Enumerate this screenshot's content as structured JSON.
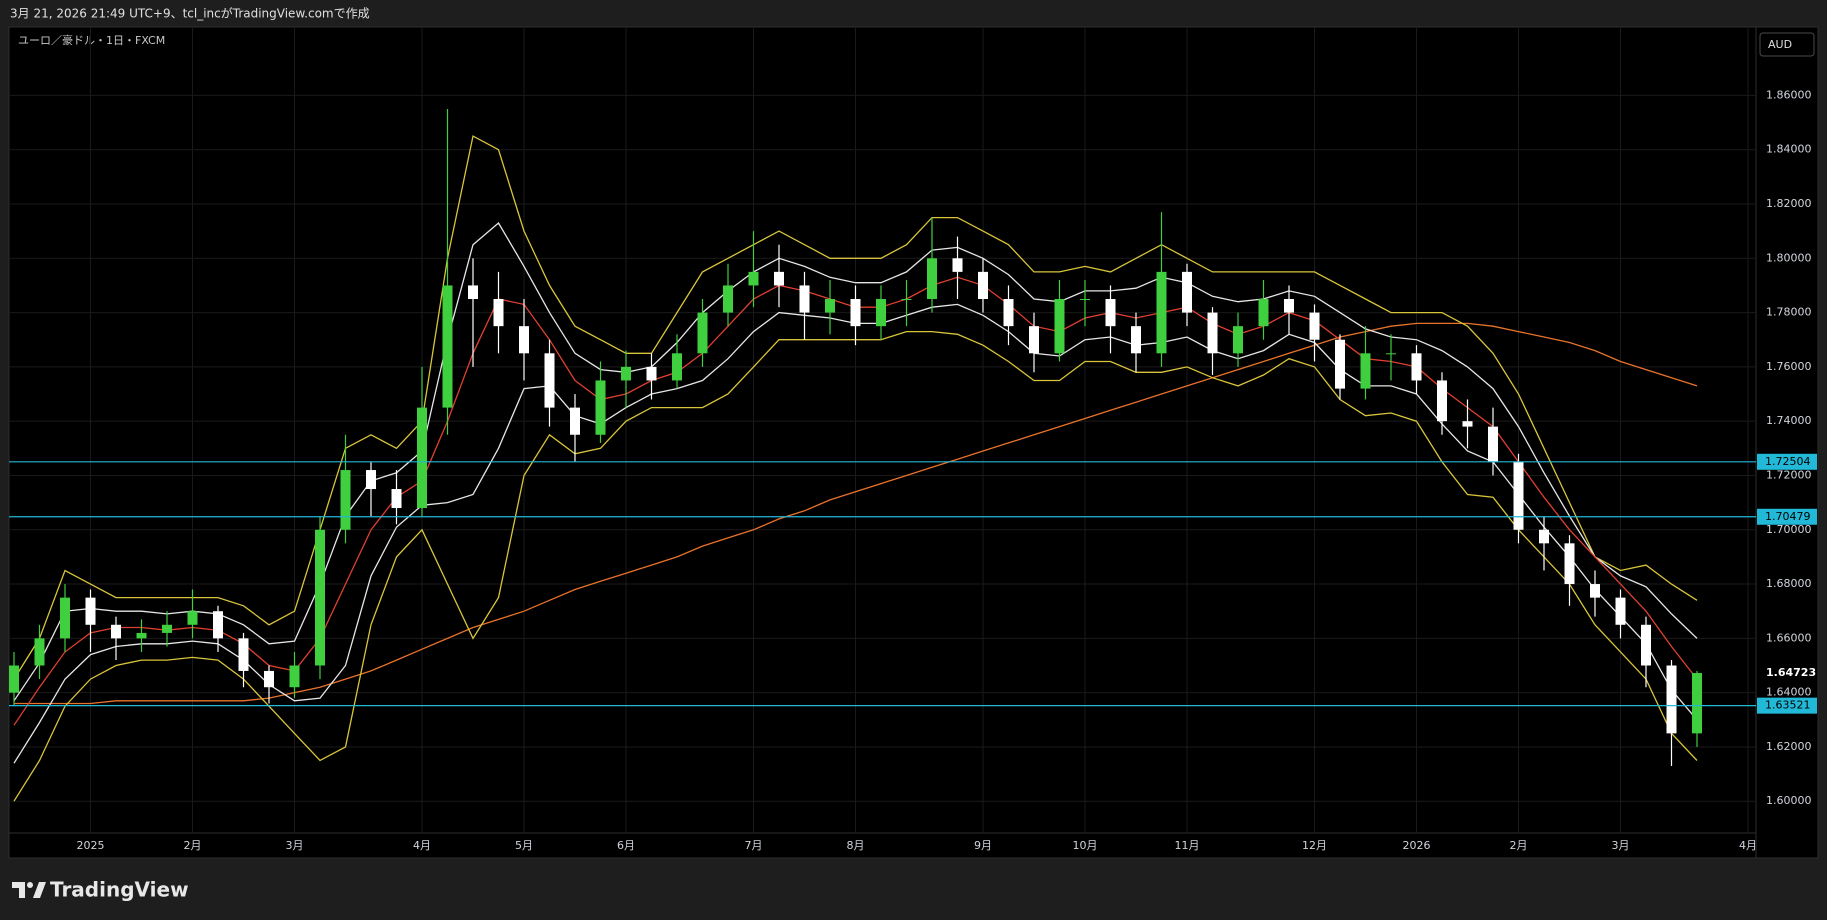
{
  "header": {
    "title": "3月 21, 2026 21:49 UTC+9、tcl_incがTradingView.comで作成"
  },
  "footer": {
    "logo": "TradingView"
  },
  "chart_data": {
    "type": "candlestick",
    "title": "ユーロ／豪ドル・1日・FXCM",
    "currency": "AUD",
    "categories": [
      null,
      null,
      null,
      "2025",
      null,
      null,
      null,
      "2月",
      null,
      null,
      null,
      "3月",
      null,
      null,
      null,
      null,
      "4月",
      null,
      null,
      null,
      "5月",
      null,
      null,
      null,
      "6月",
      null,
      null,
      null,
      null,
      "7月",
      null,
      null,
      null,
      "8月",
      null,
      null,
      null,
      null,
      "9月",
      null,
      null,
      null,
      "10月",
      null,
      null,
      null,
      "11月",
      null,
      null,
      null,
      null,
      "12月",
      null,
      null,
      null,
      "2026",
      null,
      null,
      null,
      "2月",
      null,
      null,
      null,
      "3月",
      null,
      null,
      null,
      null,
      "4月"
    ],
    "candles": {
      "open": [
        1.64,
        1.65,
        1.66,
        1.675,
        1.665,
        1.66,
        1.662,
        1.665,
        1.67,
        1.66,
        1.648,
        1.642,
        1.65,
        1.7,
        1.722,
        1.715,
        1.708,
        1.745,
        1.79,
        1.785,
        1.775,
        1.765,
        1.745,
        1.735,
        1.755,
        1.76,
        1.755,
        1.765,
        1.78,
        1.79,
        1.795,
        1.79,
        1.78,
        1.785,
        1.775,
        1.785,
        1.785,
        1.8,
        1.795,
        1.785,
        1.775,
        1.765,
        1.785,
        1.785,
        1.775,
        1.765,
        1.795,
        1.78,
        1.765,
        1.775,
        1.785,
        1.78,
        1.77,
        1.752,
        1.765,
        1.765,
        1.755,
        1.74,
        1.738,
        1.725,
        1.7,
        1.695,
        1.68,
        1.675,
        1.665,
        1.65,
        1.625,
        null,
        null
      ],
      "high": [
        1.655,
        1.665,
        1.68,
        1.678,
        1.668,
        1.667,
        1.67,
        1.678,
        1.672,
        1.662,
        1.65,
        1.655,
        1.705,
        1.735,
        1.725,
        1.722,
        1.76,
        1.855,
        1.8,
        1.795,
        1.785,
        1.77,
        1.75,
        1.762,
        1.766,
        1.765,
        1.772,
        1.785,
        1.798,
        1.81,
        1.805,
        1.795,
        1.792,
        1.79,
        1.79,
        1.792,
        1.815,
        1.808,
        1.8,
        1.79,
        1.78,
        1.792,
        1.792,
        1.79,
        1.78,
        1.817,
        1.798,
        1.782,
        1.78,
        1.792,
        1.79,
        1.783,
        1.772,
        1.775,
        1.772,
        1.768,
        1.758,
        1.748,
        1.745,
        1.728,
        1.705,
        1.698,
        1.685,
        1.678,
        1.668,
        1.652,
        1.648,
        null,
        null
      ],
      "low": [
        1.635,
        1.645,
        1.655,
        1.655,
        1.652,
        1.655,
        1.657,
        1.66,
        1.655,
        1.642,
        1.636,
        1.638,
        1.645,
        1.695,
        1.705,
        1.702,
        1.705,
        1.735,
        1.76,
        1.765,
        1.755,
        1.738,
        1.725,
        1.732,
        1.745,
        1.748,
        1.752,
        1.76,
        1.775,
        1.782,
        1.782,
        1.77,
        1.772,
        1.768,
        1.77,
        1.775,
        1.78,
        1.785,
        1.78,
        1.768,
        1.758,
        1.762,
        1.775,
        1.765,
        1.758,
        1.76,
        1.775,
        1.757,
        1.76,
        1.77,
        1.772,
        1.762,
        1.748,
        1.748,
        1.755,
        1.75,
        1.735,
        1.73,
        1.72,
        1.695,
        1.685,
        1.672,
        1.668,
        1.66,
        1.642,
        1.613,
        1.62,
        null,
        null
      ],
      "close": [
        1.65,
        1.66,
        1.675,
        1.665,
        1.66,
        1.662,
        1.665,
        1.67,
        1.66,
        1.648,
        1.642,
        1.65,
        1.7,
        1.722,
        1.715,
        1.708,
        1.745,
        1.79,
        1.785,
        1.775,
        1.765,
        1.745,
        1.735,
        1.755,
        1.76,
        1.755,
        1.765,
        1.78,
        1.79,
        1.795,
        1.79,
        1.78,
        1.785,
        1.775,
        1.785,
        1.785,
        1.8,
        1.795,
        1.785,
        1.775,
        1.765,
        1.785,
        1.785,
        1.775,
        1.765,
        1.795,
        1.78,
        1.765,
        1.775,
        1.785,
        1.78,
        1.77,
        1.752,
        1.765,
        1.765,
        1.755,
        1.74,
        1.738,
        1.725,
        1.7,
        1.695,
        1.68,
        1.675,
        1.665,
        1.65,
        1.625,
        1.64723,
        null,
        null
      ]
    },
    "up_color": "#3fcf3f",
    "down_color": "#ffffff",
    "series": [
      {
        "color": "#e8732a",
        "values": [
          1.636,
          1.636,
          1.636,
          1.636,
          1.637,
          1.637,
          1.637,
          1.637,
          1.637,
          1.637,
          1.638,
          1.64,
          1.642,
          1.645,
          1.648,
          1.652,
          1.656,
          1.66,
          1.664,
          1.667,
          1.67,
          1.674,
          1.678,
          1.681,
          1.684,
          1.687,
          1.69,
          1.694,
          1.697,
          1.7,
          1.704,
          1.707,
          1.711,
          1.714,
          1.717,
          1.72,
          1.723,
          1.726,
          1.729,
          1.732,
          1.735,
          1.738,
          1.741,
          1.744,
          1.747,
          1.75,
          1.753,
          1.756,
          1.759,
          1.762,
          1.765,
          1.768,
          1.771,
          1.773,
          1.775,
          1.776,
          1.776,
          1.776,
          1.775,
          1.773,
          1.771,
          1.769,
          1.766,
          1.762,
          1.759,
          1.756,
          1.753,
          null,
          null
        ]
      },
      {
        "color": "#d9c53a",
        "values": [
          1.645,
          1.66,
          1.685,
          1.68,
          1.675,
          1.675,
          1.675,
          1.675,
          1.675,
          1.672,
          1.665,
          1.67,
          1.7,
          1.73,
          1.735,
          1.73,
          1.74,
          1.8,
          1.845,
          1.84,
          1.81,
          1.79,
          1.775,
          1.77,
          1.765,
          1.765,
          1.78,
          1.795,
          1.8,
          1.805,
          1.81,
          1.805,
          1.8,
          1.8,
          1.8,
          1.805,
          1.815,
          1.815,
          1.81,
          1.805,
          1.795,
          1.795,
          1.797,
          1.795,
          1.8,
          1.805,
          1.8,
          1.795,
          1.795,
          1.795,
          1.795,
          1.795,
          1.79,
          1.785,
          1.78,
          1.78,
          1.78,
          1.775,
          1.765,
          1.75,
          1.73,
          1.71,
          1.69,
          1.685,
          1.687,
          1.68,
          1.674,
          null,
          null
        ]
      },
      {
        "color": "#e6e6e6",
        "values": [
          1.637,
          1.651,
          1.67,
          1.671,
          1.67,
          1.67,
          1.669,
          1.67,
          1.669,
          1.665,
          1.658,
          1.659,
          1.68,
          1.705,
          1.718,
          1.721,
          1.729,
          1.77,
          1.805,
          1.813,
          1.797,
          1.78,
          1.765,
          1.759,
          1.758,
          1.76,
          1.769,
          1.78,
          1.788,
          1.795,
          1.8,
          1.797,
          1.793,
          1.791,
          1.791,
          1.795,
          1.803,
          1.804,
          1.8,
          1.794,
          1.785,
          1.784,
          1.788,
          1.788,
          1.789,
          1.793,
          1.791,
          1.786,
          1.784,
          1.785,
          1.788,
          1.786,
          1.78,
          1.774,
          1.771,
          1.77,
          1.766,
          1.76,
          1.752,
          1.738,
          1.721,
          1.705,
          1.69,
          1.683,
          1.679,
          1.669,
          1.66,
          null,
          null
        ]
      },
      {
        "color": "#e0402f",
        "values": [
          1.628,
          1.642,
          1.655,
          1.662,
          1.664,
          1.664,
          1.663,
          1.664,
          1.663,
          1.658,
          1.65,
          1.648,
          1.66,
          1.68,
          1.7,
          1.712,
          1.718,
          1.74,
          1.765,
          1.785,
          1.783,
          1.77,
          1.755,
          1.748,
          1.75,
          1.755,
          1.758,
          1.765,
          1.775,
          1.785,
          1.79,
          1.788,
          1.785,
          1.782,
          1.782,
          1.785,
          1.79,
          1.793,
          1.79,
          1.783,
          1.775,
          1.773,
          1.778,
          1.78,
          1.778,
          1.78,
          1.782,
          1.776,
          1.772,
          1.775,
          1.78,
          1.777,
          1.77,
          1.763,
          1.762,
          1.76,
          1.752,
          1.745,
          1.738,
          1.725,
          1.712,
          1.7,
          1.69,
          1.68,
          1.67,
          1.657,
          1.645,
          null,
          null
        ]
      },
      {
        "color": "#e6e6e6",
        "values": [
          1.614,
          1.629,
          1.645,
          1.654,
          1.657,
          1.658,
          1.658,
          1.659,
          1.658,
          1.652,
          1.643,
          1.637,
          1.638,
          1.65,
          1.683,
          1.701,
          1.709,
          1.71,
          1.713,
          1.73,
          1.752,
          1.753,
          1.742,
          1.739,
          1.745,
          1.75,
          1.752,
          1.755,
          1.763,
          1.773,
          1.78,
          1.779,
          1.778,
          1.776,
          1.776,
          1.779,
          1.782,
          1.783,
          1.779,
          1.773,
          1.765,
          1.764,
          1.77,
          1.771,
          1.768,
          1.769,
          1.771,
          1.766,
          1.763,
          1.766,
          1.772,
          1.769,
          1.759,
          1.753,
          1.753,
          1.75,
          1.739,
          1.729,
          1.725,
          1.713,
          1.701,
          1.69,
          1.678,
          1.668,
          1.658,
          1.641,
          1.63,
          null,
          null
        ]
      },
      {
        "color": "#d9c53a",
        "values": [
          1.6,
          1.615,
          1.635,
          1.645,
          1.65,
          1.652,
          1.652,
          1.653,
          1.652,
          1.645,
          1.635,
          1.625,
          1.615,
          1.62,
          1.665,
          1.69,
          1.7,
          1.68,
          1.66,
          1.675,
          1.72,
          1.735,
          1.728,
          1.73,
          1.74,
          1.745,
          1.745,
          1.745,
          1.75,
          1.76,
          1.77,
          1.77,
          1.77,
          1.77,
          1.77,
          1.773,
          1.773,
          1.772,
          1.768,
          1.762,
          1.755,
          1.755,
          1.762,
          1.762,
          1.758,
          1.758,
          1.76,
          1.756,
          1.753,
          1.757,
          1.763,
          1.76,
          1.748,
          1.742,
          1.743,
          1.74,
          1.725,
          1.713,
          1.712,
          1.7,
          1.69,
          1.68,
          1.665,
          1.655,
          1.645,
          1.625,
          1.615,
          null,
          null
        ]
      }
    ],
    "hline_color": "#22b8d8",
    "hlines": [
      {
        "value": 1.72504,
        "label": "1.72504"
      },
      {
        "value": 1.70479,
        "label": "1.70479"
      },
      {
        "value": 1.63521,
        "label": "1.63521"
      }
    ],
    "last_price": {
      "value": 1.64723,
      "label": "1.64723"
    },
    "ylim": [
      1.5883,
      1.8852
    ],
    "yticks": [
      {
        "value": 1.6,
        "label": "1.60000"
      },
      {
        "value": 1.62,
        "label": "1.62000"
      },
      {
        "value": 1.64,
        "label": "1.64000"
      },
      {
        "value": 1.66,
        "label": "1.66000"
      },
      {
        "value": 1.68,
        "label": "1.68000"
      },
      {
        "value": 1.7,
        "label": "1.70000"
      },
      {
        "value": 1.72,
        "label": "1.72000"
      },
      {
        "value": 1.74,
        "label": "1.74000"
      },
      {
        "value": 1.76,
        "label": "1.76000"
      },
      {
        "value": 1.78,
        "label": "1.78000"
      },
      {
        "value": 1.8,
        "label": "1.80000"
      },
      {
        "value": 1.82,
        "label": "1.82000"
      },
      {
        "value": 1.84,
        "label": "1.84000"
      },
      {
        "value": 1.86,
        "label": "1.86000"
      }
    ],
    "grid": true
  }
}
